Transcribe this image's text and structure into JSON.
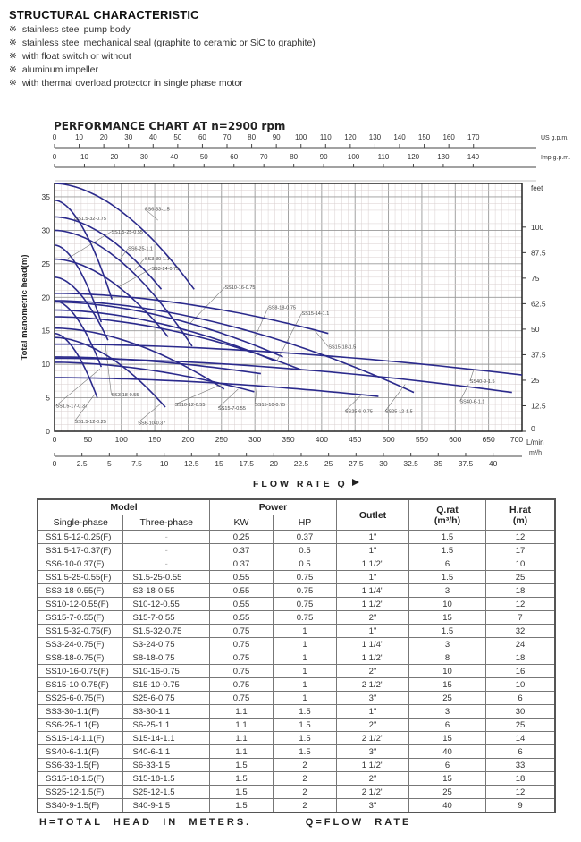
{
  "header": {
    "title": "STRUCTURAL CHARACTERISTIC",
    "bullet_mark": "※",
    "bullets": [
      "stainless steel pump body",
      "stainless steel mechanical seal (graphite to ceramic or SiC to graphite)",
      "with float switch or without",
      "aluminum impeller",
      "with thermal overload protector in single phase motor"
    ]
  },
  "chart_data": {
    "type": "line",
    "title": "PERFORMANCE CHART AT  n=2900 rpm",
    "xlabel": "FLOW RATE Q",
    "ylabel": "Total manometric head(m)",
    "xlim": [
      0,
      700
    ],
    "ylim": [
      0,
      37
    ],
    "x_unit": "L/min",
    "y_right_unit": "feet",
    "m3h_unit": "m³/h",
    "us_gpm_label": "US g.p.m.",
    "imp_gpm_label": "Imp g.p.m.",
    "x_ticks": [
      0,
      50,
      100,
      150,
      200,
      250,
      300,
      350,
      400,
      450,
      500,
      550,
      600,
      650,
      700
    ],
    "y_ticks": [
      0,
      5,
      10,
      15,
      20,
      25,
      30,
      35
    ],
    "feet_ticks": [
      0,
      12.5,
      25,
      37.5,
      50,
      62.5,
      75,
      87.5,
      100
    ],
    "m3h_ticks": [
      0,
      2.5,
      5,
      7.5,
      10,
      12.5,
      15,
      17.5,
      20,
      22.5,
      25,
      27.5,
      30,
      32.5,
      35,
      37.5,
      40
    ],
    "us_gpm_ticks": [
      0,
      10,
      20,
      30,
      40,
      50,
      60,
      70,
      80,
      90,
      100,
      110,
      120,
      130,
      140,
      150,
      160,
      170
    ],
    "imp_gpm_ticks": [
      0,
      10,
      20,
      30,
      40,
      50,
      60,
      70,
      80,
      90,
      100,
      110,
      120,
      130,
      140
    ],
    "grid": true,
    "line_color": "#2b2a8c",
    "series": [
      {
        "name": "SS6-33-1.5",
        "h0": 37,
        "end": [
          209,
          21.2
        ],
        "label_at": [
          135,
          33.2
        ],
        "lead": [
          155,
          31.5
        ]
      },
      {
        "name": "SS1.5-32-0.75",
        "h0": 34.5,
        "end": [
          86,
          19.7
        ],
        "label_at": [
          30,
          31.8
        ],
        "lead": [
          30,
          31
        ]
      },
      {
        "name": "SS1.5-25-0.55",
        "h0": 27.8,
        "end": [
          70,
          16.3
        ],
        "label_at": [
          85,
          29.8
        ],
        "lead": [
          20,
          25.8
        ]
      },
      {
        "name": "SS6-25-1.1",
        "h0": 32,
        "end": [
          160,
          21.2
        ],
        "label_at": [
          110,
          27.3
        ],
        "lead": [
          97,
          25.5
        ]
      },
      {
        "name": "SS3-30-1.1",
        "h0": 30,
        "end": [
          206,
          12.7
        ],
        "label_at": [
          135,
          25.8
        ],
        "lead": [
          120,
          24
        ]
      },
      {
        "name": "SS3-24-0.75",
        "h0": 25.7,
        "end": [
          170,
          14.1
        ],
        "label_at": [
          145,
          24.3
        ],
        "lead": [
          97,
          21.6
        ]
      },
      {
        "name": "SS3-18-0.55",
        "h0": 23,
        "end": [
          80,
          13.6
        ],
        "label_at": [
          85,
          5.5
        ],
        "lead": [
          75,
          14
        ]
      },
      {
        "name": "SS1.5-17-0.37",
        "h0": 19.5,
        "end": [
          70,
          9.6
        ],
        "label_at": [
          2,
          3.8
        ],
        "lead": [
          68,
          9.3
        ]
      },
      {
        "name": "SS1.5-12-0.25",
        "h0": 14.6,
        "end": [
          64,
          5.0
        ],
        "label_at": [
          30,
          1.5
        ],
        "lead": [
          60,
          5.5
        ]
      },
      {
        "name": "SS6-10-0.37",
        "h0": 14,
        "end": [
          166,
          3.6
        ],
        "label_at": [
          125,
          1.3
        ],
        "lead": [
          160,
          4.2
        ]
      },
      {
        "name": "SS10-12-0.55",
        "h0": 15.4,
        "end": [
          254,
          6.3
        ],
        "label_at": [
          180,
          4
        ],
        "lead": [
          250,
          7
        ]
      },
      {
        "name": "SS15-7-0.55",
        "h0": 10.3,
        "end": [
          299,
          5.9
        ],
        "label_at": [
          245,
          3.5
        ],
        "lead": [
          275,
          6.3
        ]
      },
      {
        "name": "SS15-10-0.75",
        "h0": 11.1,
        "end": [
          309,
          8.6
        ],
        "label_at": [
          300,
          4
        ],
        "lead": [
          305,
          8.5
        ]
      },
      {
        "name": "SS10-16-0.75",
        "h0": 18.1,
        "end": [
          330,
          10.5
        ],
        "label_at": [
          255,
          21.5
        ],
        "lead": [
          200,
          15.8
        ]
      },
      {
        "name": "SS8-18-0.75",
        "h0": 19.3,
        "end": [
          342,
          11.1
        ],
        "label_at": [
          320,
          18.5
        ],
        "lead": [
          300,
          14
        ]
      },
      {
        "name": "SS15-14-1.1",
        "h0": 17.1,
        "end": [
          369,
          9.2
        ],
        "label_at": [
          370,
          17.6
        ],
        "lead": [
          333,
          10.5
        ]
      },
      {
        "name": "SS15-18-1.5",
        "h0": 20.6,
        "end": [
          410,
          14.6
        ],
        "label_at": [
          410,
          12.6
        ],
        "lead": [
          390,
          15
        ]
      },
      {
        "name": "SS25-12-1.5",
        "h0": 19.5,
        "end": [
          538,
          5.8
        ],
        "label_at": [
          495,
          3
        ],
        "lead": [
          525,
          7
        ]
      },
      {
        "name": "SS25-6-0.75",
        "h0": 8,
        "end": [
          485,
          5.2
        ],
        "label_at": [
          435,
          3
        ],
        "lead": [
          460,
          5.5
        ]
      },
      {
        "name": "SS40-6-1.1",
        "h0": 10.9,
        "end": [
          685,
          5.8
        ],
        "label_at": [
          607,
          4.5
        ],
        "lead": [
          620,
          7
        ]
      },
      {
        "name": "SS40-9-1.5",
        "h0": 13,
        "end": [
          700,
          8.4
        ],
        "label_at": [
          622,
          7.5
        ],
        "lead": [
          628,
          9.3
        ]
      }
    ]
  },
  "table": {
    "head": {
      "model": "Model",
      "single": "Single-phase",
      "three": "Three-phase",
      "power": "Power",
      "kw": "KW",
      "hp": "HP",
      "outlet": "Outlet",
      "q": "Q.rat",
      "q_unit": "(m³/h)",
      "h": "H.rat",
      "h_unit": "(m)"
    },
    "rows": [
      [
        "SS1.5-12-0.25(F)",
        "-",
        "0.25",
        "0.37",
        "1\"",
        "1.5",
        "12"
      ],
      [
        "SS1.5-17-0.37(F)",
        "-",
        "0.37",
        "0.5",
        "1\"",
        "1.5",
        "17"
      ],
      [
        "SS6-10-0.37(F)",
        "-",
        "0.37",
        "0.5",
        "1 1/2\"",
        "6",
        "10"
      ],
      [
        "SS1.5-25-0.55(F)",
        "S1.5-25-0.55",
        "0.55",
        "0.75",
        "1\"",
        "1.5",
        "25"
      ],
      [
        "SS3-18-0.55(F)",
        "S3-18-0.55",
        "0.55",
        "0.75",
        "1 1/4\"",
        "3",
        "18"
      ],
      [
        "SS10-12-0.55(F)",
        "S10-12-0.55",
        "0.55",
        "0.75",
        "1 1/2\"",
        "10",
        "12"
      ],
      [
        "SS15-7-0.55(F)",
        "S15-7-0.55",
        "0.55",
        "0.75",
        "2\"",
        "15",
        "7"
      ],
      [
        "SS1.5-32-0.75(F)",
        "S1.5-32-0.75",
        "0.75",
        "1",
        "1\"",
        "1.5",
        "32"
      ],
      [
        "SS3-24-0.75(F)",
        "S3-24-0.75",
        "0.75",
        "1",
        "1 1/4\"",
        "3",
        "24"
      ],
      [
        "SS8-18-0.75(F)",
        "S8-18-0.75",
        "0.75",
        "1",
        "1 1/2\"",
        "8",
        "18"
      ],
      [
        "SS10-16-0.75(F)",
        "S10-16-0.75",
        "0.75",
        "1",
        "2\"",
        "10",
        "16"
      ],
      [
        "SS15-10-0.75(F)",
        "S15-10-0.75",
        "0.75",
        "1",
        "2 1/2\"",
        "15",
        "10"
      ],
      [
        "SS25-6-0.75(F)",
        "S25-6-0.75",
        "0.75",
        "1",
        "3\"",
        "25",
        "6"
      ],
      [
        "SS3-30-1.1(F)",
        "S3-30-1.1",
        "1.1",
        "1.5",
        "1\"",
        "3",
        "30"
      ],
      [
        "SS6-25-1.1(F)",
        "S6-25-1.1",
        "1.1",
        "1.5",
        "2\"",
        "6",
        "25"
      ],
      [
        "SS15-14-1.1(F)",
        "S15-14-1.1",
        "1.1",
        "1.5",
        "2 1/2\"",
        "15",
        "14"
      ],
      [
        "SS40-6-1.1(F)",
        "S40-6-1.1",
        "1.1",
        "1.5",
        "3\"",
        "40",
        "6"
      ],
      [
        "SS6-33-1.5(F)",
        "S6-33-1.5",
        "1.5",
        "2",
        "1 1/2\"",
        "6",
        "33"
      ],
      [
        "SS15-18-1.5(F)",
        "S15-18-1.5",
        "1.5",
        "2",
        "2\"",
        "15",
        "18"
      ],
      [
        "SS25-12-1.5(F)",
        "S25-12-1.5",
        "1.5",
        "2",
        "2 1/2\"",
        "25",
        "12"
      ],
      [
        "SS40-9-1.5(F)",
        "S40-9-1.5",
        "1.5",
        "2",
        "3\"",
        "40",
        "9"
      ]
    ]
  },
  "footer": {
    "left": "H=TOTAL  HEAD  IN  METERS.",
    "right": "Q=FLOW  RATE"
  }
}
